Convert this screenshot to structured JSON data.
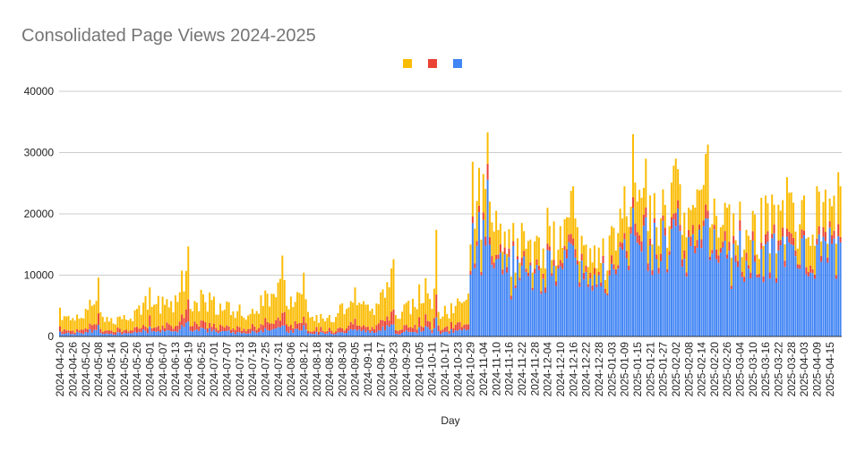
{
  "chart_data": {
    "type": "bar",
    "stacked": true,
    "title": "Consolidated Page Views 2024-2025",
    "xlabel": "Day",
    "ylabel": "",
    "ylim": [
      0,
      40000
    ],
    "yticks": [
      "0",
      "10000",
      "20000",
      "30000",
      "40000"
    ],
    "grid": true,
    "legend": "top-center",
    "series_order_bottom_to_top": [
      "blue",
      "red",
      "yellow"
    ],
    "series_colors": [
      "#4285f4",
      "#ea4335",
      "#fbbc04"
    ],
    "start_date": "2024-04-20",
    "end_date": "2025-04-20",
    "x_tick_labels": [
      "2024-04-20",
      "2024-04-26",
      "2024-05-02",
      "2024-05-08",
      "2024-05-14",
      "2024-05-20",
      "2024-05-26",
      "2024-06-01",
      "2024-06-07",
      "2024-06-13",
      "2024-06-19",
      "2024-06-25",
      "2024-07-01",
      "2024-07-07",
      "2024-07-13",
      "2024-07-19",
      "2024-07-25",
      "2024-07-31",
      "2024-08-06",
      "2024-08-12",
      "2024-08-18",
      "2024-08-24",
      "2024-08-30",
      "2024-09-05",
      "2024-09-11",
      "2024-09-17",
      "2024-09-23",
      "2024-09-29",
      "2024-10-05",
      "2024-10-11",
      "2024-10-17",
      "2024-10-23",
      "2024-10-29",
      "2024-11-04",
      "2024-11-10",
      "2024-11-16",
      "2024-11-22",
      "2024-11-28",
      "2024-12-04",
      "2024-12-10",
      "2024-12-16",
      "2024-12-22",
      "2024-12-28",
      "2025-01-03",
      "2025-01-09",
      "2025-01-15",
      "2025-01-21",
      "2025-01-27",
      "2025-02-02",
      "2025-02-08",
      "2025-02-14",
      "2025-02-20",
      "2025-02-26",
      "2025-03-04",
      "2025-03-10",
      "2025-03-16",
      "2025-03-22",
      "2025-03-28",
      "2025-04-03",
      "2025-04-09",
      "2025-04-15"
    ],
    "total_anchors": [
      [
        "2024-04-20",
        4700
      ],
      [
        "2024-04-26",
        3000
      ],
      [
        "2024-05-02",
        4500
      ],
      [
        "2024-05-04",
        6000
      ],
      [
        "2024-05-08",
        9600
      ],
      [
        "2024-05-10",
        3200
      ],
      [
        "2024-05-14",
        3000
      ],
      [
        "2024-05-20",
        3500
      ],
      [
        "2024-05-26",
        4500
      ],
      [
        "2024-06-01",
        8000
      ],
      [
        "2024-06-07",
        6500
      ],
      [
        "2024-06-13",
        6700
      ],
      [
        "2024-06-19",
        14700
      ],
      [
        "2024-06-20",
        4500
      ],
      [
        "2024-06-25",
        7600
      ],
      [
        "2024-07-01",
        6500
      ],
      [
        "2024-07-07",
        5700
      ],
      [
        "2024-07-13",
        5200
      ],
      [
        "2024-07-19",
        4500
      ],
      [
        "2024-07-25",
        7500
      ],
      [
        "2024-07-31",
        8800
      ],
      [
        "2024-08-02",
        13200
      ],
      [
        "2024-08-04",
        5000
      ],
      [
        "2024-08-06",
        6500
      ],
      [
        "2024-08-12",
        10400
      ],
      [
        "2024-08-14",
        4000
      ],
      [
        "2024-08-18",
        3500
      ],
      [
        "2024-08-24",
        3500
      ],
      [
        "2024-08-30",
        5400
      ],
      [
        "2024-09-05",
        8000
      ],
      [
        "2024-09-11",
        5200
      ],
      [
        "2024-09-17",
        7200
      ],
      [
        "2024-09-23",
        12600
      ],
      [
        "2024-09-24",
        3500
      ],
      [
        "2024-09-29",
        5500
      ],
      [
        "2024-10-05",
        8500
      ],
      [
        "2024-10-08",
        9500
      ],
      [
        "2024-10-11",
        4500
      ],
      [
        "2024-10-13",
        17400
      ],
      [
        "2024-10-14",
        4000
      ],
      [
        "2024-10-17",
        5000
      ],
      [
        "2024-10-23",
        6200
      ],
      [
        "2024-10-27",
        6000
      ],
      [
        "2024-10-28",
        7000
      ],
      [
        "2024-10-29",
        15000
      ],
      [
        "2024-10-30",
        28500
      ],
      [
        "2024-11-02",
        27500
      ],
      [
        "2024-11-04",
        26500
      ],
      [
        "2024-11-06",
        33300
      ],
      [
        "2024-11-07",
        22000
      ],
      [
        "2024-11-10",
        20500
      ],
      [
        "2024-11-16",
        17500
      ],
      [
        "2024-11-22",
        18500
      ],
      [
        "2024-11-28",
        15500
      ],
      [
        "2024-12-04",
        21000
      ],
      [
        "2024-12-10",
        18000
      ],
      [
        "2024-12-16",
        24500
      ],
      [
        "2024-12-22",
        15000
      ],
      [
        "2024-12-28",
        14500
      ],
      [
        "2025-01-03",
        18000
      ],
      [
        "2025-01-09",
        24500
      ],
      [
        "2025-01-13",
        33000
      ],
      [
        "2025-01-15",
        22000
      ],
      [
        "2025-01-19",
        29000
      ],
      [
        "2025-01-21",
        23000
      ],
      [
        "2025-01-27",
        24000
      ],
      [
        "2025-02-02",
        29000
      ],
      [
        "2025-02-08",
        21000
      ],
      [
        "2025-02-14",
        24000
      ],
      [
        "2025-02-17",
        31300
      ],
      [
        "2025-02-20",
        22500
      ],
      [
        "2025-02-26",
        21000
      ],
      [
        "2025-03-04",
        22000
      ],
      [
        "2025-03-10",
        20500
      ],
      [
        "2025-03-16",
        23000
      ],
      [
        "2025-03-22",
        21500
      ],
      [
        "2025-03-26",
        26000
      ],
      [
        "2025-03-28",
        23500
      ],
      [
        "2025-04-03",
        23000
      ],
      [
        "2025-04-09",
        24500
      ],
      [
        "2025-04-15",
        22500
      ],
      [
        "2025-04-19",
        26800
      ],
      [
        "2025-04-20",
        24500
      ]
    ]
  }
}
